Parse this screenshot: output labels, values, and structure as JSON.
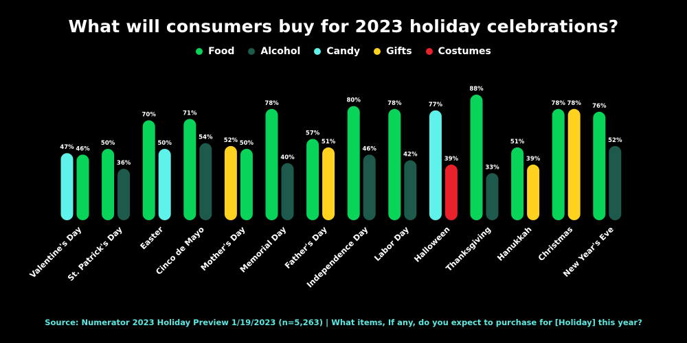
{
  "chart_data": {
    "type": "bar",
    "title": "What will consumers buy for 2023 holiday celebrations?",
    "legend": [
      {
        "name": "Food",
        "color": "#08d45a"
      },
      {
        "name": "Alcohol",
        "color": "#1d5a4c"
      },
      {
        "name": "Candy",
        "color": "#5ef2ea"
      },
      {
        "name": "Gifts",
        "color": "#ffd21f"
      },
      {
        "name": "Costumes",
        "color": "#e8212a"
      }
    ],
    "legend_position": "top-center",
    "ylim": [
      0,
      100
    ],
    "categories": [
      {
        "label": "Valentine's Day",
        "bars": [
          {
            "series": "Candy",
            "value": 47,
            "label": "47%"
          },
          {
            "series": "Food",
            "value": 46,
            "label": "46%"
          }
        ]
      },
      {
        "label": "St. Patrick's Day",
        "bars": [
          {
            "series": "Food",
            "value": 50,
            "label": "50%"
          },
          {
            "series": "Alcohol",
            "value": 36,
            "label": "36%"
          }
        ]
      },
      {
        "label": "Easter",
        "bars": [
          {
            "series": "Food",
            "value": 70,
            "label": "70%"
          },
          {
            "series": "Candy",
            "value": 50,
            "label": "50%"
          }
        ]
      },
      {
        "label": "Cinco de Mayo",
        "bars": [
          {
            "series": "Food",
            "value": 71,
            "label": "71%"
          },
          {
            "series": "Alcohol",
            "value": 54,
            "label": "54%"
          }
        ]
      },
      {
        "label": "Mother's Day",
        "bars": [
          {
            "series": "Gifts",
            "value": 52,
            "label": "52%"
          },
          {
            "series": "Food",
            "value": 50,
            "label": "50%"
          }
        ]
      },
      {
        "label": "Memorial Day",
        "bars": [
          {
            "series": "Food",
            "value": 78,
            "label": "78%"
          },
          {
            "series": "Alcohol",
            "value": 40,
            "label": "40%"
          }
        ]
      },
      {
        "label": "Father's Day",
        "bars": [
          {
            "series": "Food",
            "value": 57,
            "label": "57%"
          },
          {
            "series": "Gifts",
            "value": 51,
            "label": "51%"
          }
        ]
      },
      {
        "label": "Independence Day",
        "bars": [
          {
            "series": "Food",
            "value": 80,
            "label": "80%"
          },
          {
            "series": "Alcohol",
            "value": 46,
            "label": "46%"
          }
        ]
      },
      {
        "label": "Labor Day",
        "bars": [
          {
            "series": "Food",
            "value": 78,
            "label": "78%"
          },
          {
            "series": "Alcohol",
            "value": 42,
            "label": "42%"
          }
        ]
      },
      {
        "label": "Halloween",
        "bars": [
          {
            "series": "Candy",
            "value": 77,
            "label": "77%"
          },
          {
            "series": "Costumes",
            "value": 39,
            "label": "39%"
          }
        ]
      },
      {
        "label": "Thanksgiving",
        "bars": [
          {
            "series": "Food",
            "value": 88,
            "label": "88%"
          },
          {
            "series": "Alcohol",
            "value": 33,
            "label": "33%"
          }
        ]
      },
      {
        "label": "Hanukkah",
        "bars": [
          {
            "series": "Food",
            "value": 51,
            "label": "51%"
          },
          {
            "series": "Gifts",
            "value": 39,
            "label": "39%"
          }
        ]
      },
      {
        "label": "Christmas",
        "bars": [
          {
            "series": "Food",
            "value": 78,
            "label": "78%"
          },
          {
            "series": "Gifts",
            "value": 78,
            "label": "78%"
          }
        ]
      },
      {
        "label": "New Year's Eve",
        "bars": [
          {
            "series": "Food",
            "value": 76,
            "label": "76%"
          },
          {
            "series": "Alcohol",
            "value": 52,
            "label": "52%"
          }
        ]
      }
    ]
  },
  "source_note": "Source: Numerator 2023 Holiday Preview 1/19/2023 (n=5,263) | What items, If any, do you expect to purchase for [Holiday] this year?"
}
